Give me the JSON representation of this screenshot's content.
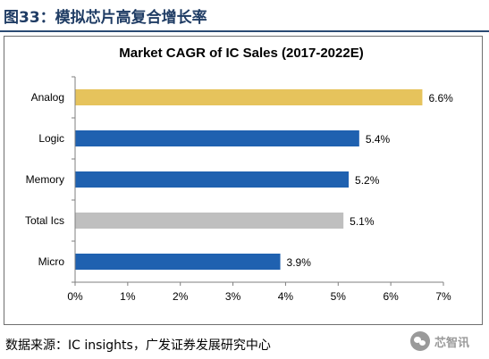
{
  "figure": {
    "title": "图33：模拟芯片高复合增长率",
    "source": "数据来源：IC insights，广发证券发展研究中心",
    "watermark_text": "芯智讯",
    "watermark_icon": "wechat-icon"
  },
  "colors": {
    "header_rule": "#2b4a73",
    "title_text": "#1f3c64",
    "highlight_bar": "#e6c35c",
    "primary_bar": "#1f61b0",
    "total_bar": "#bfbfbf",
    "axis": "#7f7f7f"
  },
  "chart_data": {
    "type": "bar",
    "orientation": "horizontal",
    "title": "Market CAGR of IC Sales (2017-2022E)",
    "categories": [
      "Analog",
      "Logic",
      "Memory",
      "Total Ics",
      "Micro"
    ],
    "values": [
      6.6,
      5.4,
      5.2,
      5.1,
      3.9
    ],
    "value_labels": [
      "6.6%",
      "5.4%",
      "5.2%",
      "5.1%",
      "3.9%"
    ],
    "bar_colors": [
      "#e6c35c",
      "#1f61b0",
      "#1f61b0",
      "#bfbfbf",
      "#1f61b0"
    ],
    "xlim": [
      0,
      7
    ],
    "x_ticks": [
      0,
      1,
      2,
      3,
      4,
      5,
      6,
      7
    ],
    "x_tick_labels": [
      "0%",
      "1%",
      "2%",
      "3%",
      "4%",
      "5%",
      "6%",
      "7%"
    ],
    "xlabel": "",
    "ylabel": "",
    "grid": false,
    "legend": "none"
  }
}
